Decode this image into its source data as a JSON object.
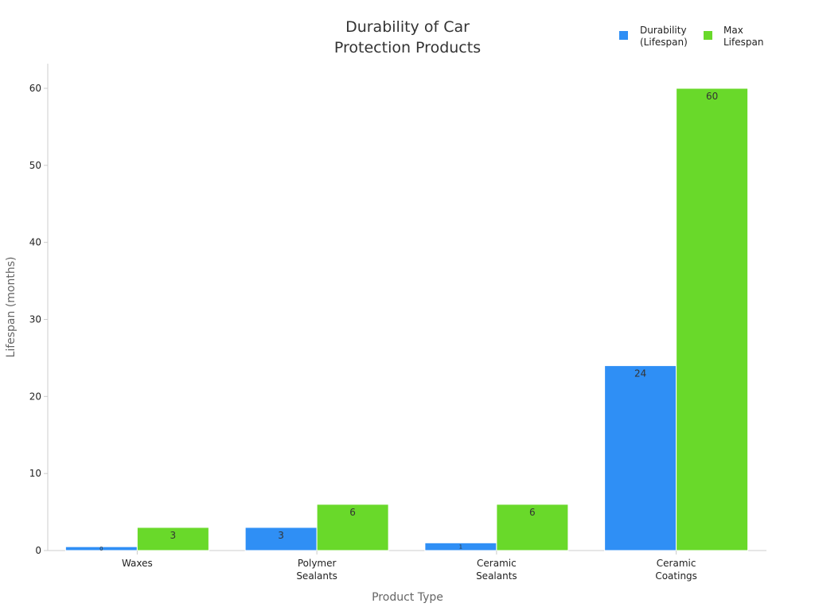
{
  "chart_data": {
    "type": "bar",
    "title_lines": [
      "Durability of Car",
      "Protection Products"
    ],
    "xlabel": "Product Type",
    "ylabel": "Lifespan (months)",
    "categories": [
      [
        "Waxes"
      ],
      [
        "Polymer",
        "Sealants"
      ],
      [
        "Ceramic",
        "Sealants"
      ],
      [
        "Ceramic",
        "Coatings"
      ]
    ],
    "ylim": [
      0,
      63
    ],
    "yticks": [
      0,
      10,
      20,
      30,
      40,
      50,
      60
    ],
    "grid": false,
    "legend_position": "top-right",
    "series": [
      {
        "name_lines": [
          "Durability",
          "(Lifespan)"
        ],
        "color": "#2f8ff5",
        "values": [
          0.5,
          3,
          1,
          24
        ],
        "labels": [
          "0",
          "3",
          "1",
          "24"
        ]
      },
      {
        "name_lines": [
          "Max",
          "Lifespan"
        ],
        "color": "#69d92a",
        "values": [
          3,
          6,
          6,
          60
        ],
        "labels": [
          "3",
          "6",
          "6",
          "60"
        ]
      }
    ]
  }
}
